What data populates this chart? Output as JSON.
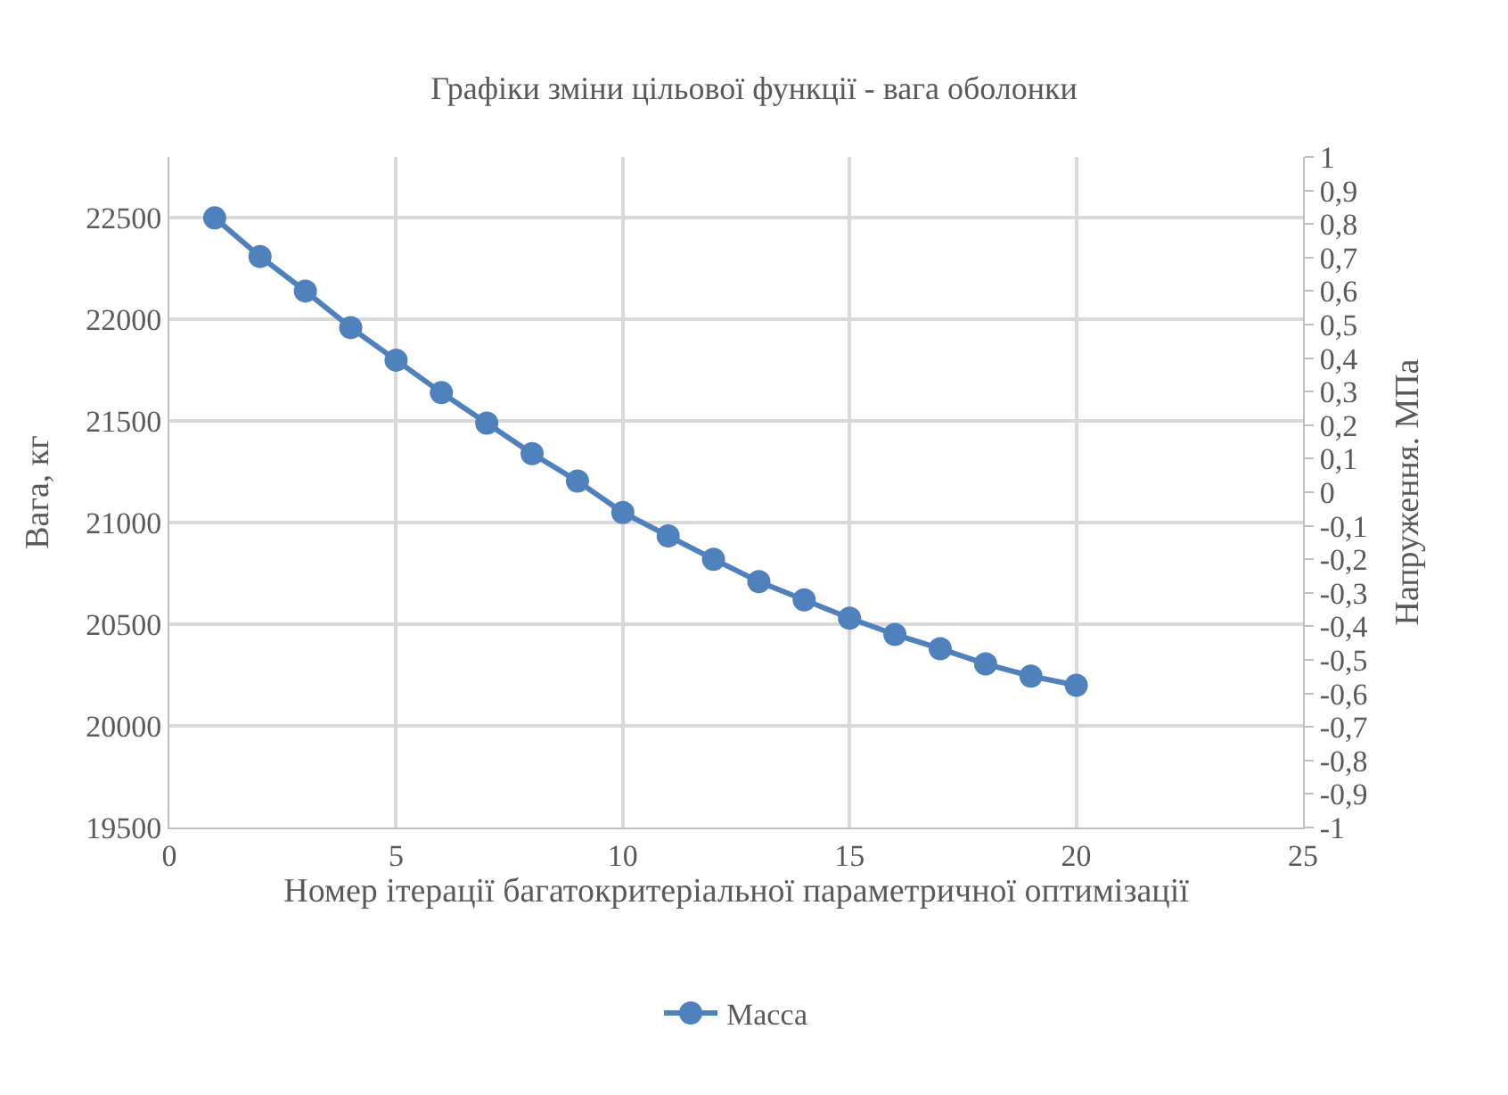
{
  "chart_data": {
    "type": "line",
    "title": "Графіки зміни цільової функції - вага оболонки",
    "xlabel": "Номер ітерації багатокритеріальної параметричної оптимізації",
    "ylabel": "Вага, кг",
    "y2label": "Напруження. МПа",
    "x": [
      1,
      2,
      3,
      4,
      5,
      6,
      7,
      8,
      9,
      10,
      11,
      12,
      13,
      14,
      15,
      16,
      17,
      18,
      19,
      20
    ],
    "series": [
      {
        "name": "Масса",
        "color": "#4f81bd",
        "values": [
          22500,
          22310,
          22140,
          21960,
          21800,
          21640,
          21490,
          21340,
          21205,
          21050,
          20935,
          20820,
          20710,
          20620,
          20530,
          20450,
          20380,
          20305,
          20245,
          20200
        ]
      }
    ],
    "xlim": [
      0,
      25
    ],
    "xticks": [
      0,
      5,
      10,
      15,
      20,
      25
    ],
    "ylim": [
      19500,
      22800
    ],
    "yticks": [
      19500,
      20000,
      20500,
      21000,
      21500,
      22000,
      22500
    ],
    "y2lim": [
      -1,
      1
    ],
    "y2ticks": [
      {
        "value": -1,
        "label": "-1"
      },
      {
        "value": -0.9,
        "label": "-0,9"
      },
      {
        "value": -0.8,
        "label": "-0,8"
      },
      {
        "value": -0.7,
        "label": "-0,7"
      },
      {
        "value": -0.6,
        "label": "-0,6"
      },
      {
        "value": -0.5,
        "label": "-0,5"
      },
      {
        "value": -0.4,
        "label": "-0,4"
      },
      {
        "value": -0.3,
        "label": "-0,3"
      },
      {
        "value": -0.2,
        "label": "-0,2"
      },
      {
        "value": -0.1,
        "label": "-0,1"
      },
      {
        "value": 0,
        "label": "0"
      },
      {
        "value": 0.1,
        "label": "0,1"
      },
      {
        "value": 0.2,
        "label": "0,2"
      },
      {
        "value": 0.3,
        "label": "0,3"
      },
      {
        "value": 0.4,
        "label": "0,4"
      },
      {
        "value": 0.5,
        "label": "0,5"
      },
      {
        "value": 0.6,
        "label": "0,6"
      },
      {
        "value": 0.7,
        "label": "0,7"
      },
      {
        "value": 0.8,
        "label": "0,8"
      },
      {
        "value": 0.9,
        "label": "0,9"
      },
      {
        "value": 1,
        "label": "1"
      }
    ],
    "grid": true,
    "legend": "bottom",
    "marker": "circle",
    "line_style": "solid"
  }
}
